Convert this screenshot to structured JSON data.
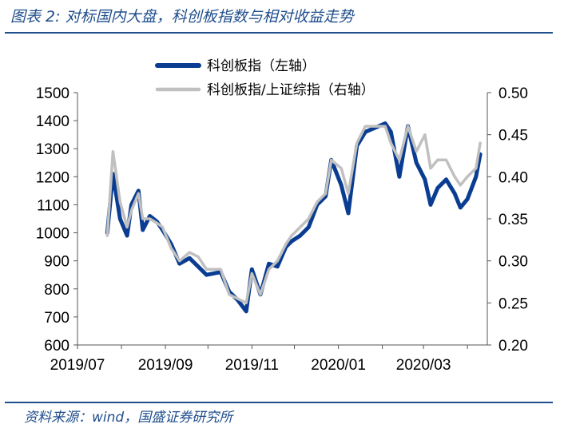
{
  "header": {
    "title": "图表 2: 对标国内大盘，科创板指数与相对收益走势"
  },
  "footer": {
    "source": "资料来源：wind，国盛证券研究所"
  },
  "chart_data": {
    "type": "line",
    "title": "图表 2: 对标国内大盘，科创板指数与相对收益走势",
    "x_tick_labels": [
      "2019/07",
      "2019/09",
      "2019/11",
      "2020/01",
      "2020/03"
    ],
    "y_left": {
      "ylim": [
        600,
        1500
      ],
      "ticks": [
        "600",
        "700",
        "800",
        "900",
        "1000",
        "1100",
        "1200",
        "1300",
        "1400",
        "1500"
      ]
    },
    "y_right": {
      "ylim": [
        0.2,
        0.5
      ],
      "ticks": [
        "0.20",
        "0.25",
        "0.30",
        "0.35",
        "0.40",
        "0.45",
        "0.50"
      ]
    },
    "grid": false,
    "legend_position": "top-center",
    "colors": {
      "series_1": "#0a3d91",
      "series_2": "#c0c0c0",
      "accent": "#1f4e8c"
    },
    "x": [
      "2019-07-22",
      "2019-07-26",
      "2019-07-31",
      "2019-08-05",
      "2019-08-08",
      "2019-08-13",
      "2019-08-16",
      "2019-08-21",
      "2019-08-26",
      "2019-08-30",
      "2019-09-05",
      "2019-09-11",
      "2019-09-18",
      "2019-09-24",
      "2019-09-30",
      "2019-10-10",
      "2019-10-16",
      "2019-10-22",
      "2019-10-28",
      "2019-11-01",
      "2019-11-07",
      "2019-11-13",
      "2019-11-19",
      "2019-11-25",
      "2019-11-29",
      "2019-12-05",
      "2019-12-11",
      "2019-12-17",
      "2019-12-23",
      "2019-12-27",
      "2020-01-03",
      "2020-01-08",
      "2020-01-14",
      "2020-01-20",
      "2020-02-03",
      "2020-02-07",
      "2020-02-13",
      "2020-02-19",
      "2020-02-25",
      "2020-03-02",
      "2020-03-06",
      "2020-03-11",
      "2020-03-17",
      "2020-03-23",
      "2020-03-27",
      "2020-04-01",
      "2020-04-07",
      "2020-04-10"
    ],
    "series": [
      {
        "name": "科创板指（左轴）",
        "axis": "left",
        "values": [
          1000,
          1210,
          1050,
          990,
          1100,
          1150,
          1010,
          1060,
          1040,
          1010,
          960,
          890,
          910,
          880,
          850,
          860,
          790,
          760,
          720,
          870,
          780,
          890,
          880,
          950,
          970,
          990,
          1020,
          1100,
          1130,
          1260,
          1170,
          1070,
          1310,
          1360,
          1390,
          1360,
          1200,
          1380,
          1250,
          1190,
          1100,
          1160,
          1190,
          1140,
          1090,
          1120,
          1200,
          1280
        ]
      },
      {
        "name": "科创板指/上证综指（右轴）",
        "axis": "right",
        "values": [
          0.33,
          0.43,
          0.37,
          0.34,
          0.36,
          0.38,
          0.35,
          0.35,
          0.345,
          0.34,
          0.315,
          0.3,
          0.31,
          0.305,
          0.29,
          0.29,
          0.26,
          0.255,
          0.25,
          0.285,
          0.26,
          0.29,
          0.3,
          0.32,
          0.33,
          0.34,
          0.35,
          0.37,
          0.38,
          0.42,
          0.41,
          0.38,
          0.44,
          0.46,
          0.46,
          0.44,
          0.42,
          0.46,
          0.43,
          0.45,
          0.41,
          0.42,
          0.42,
          0.4,
          0.39,
          0.4,
          0.41,
          0.44
        ]
      }
    ]
  }
}
